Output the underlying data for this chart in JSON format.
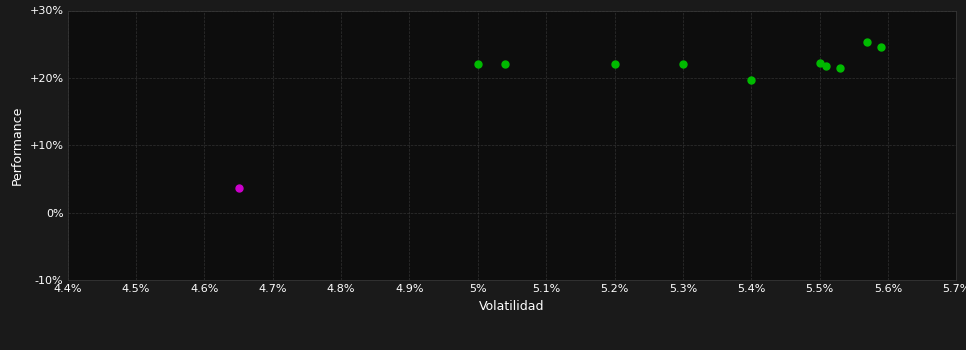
{
  "background_color": "#1a1a1a",
  "plot_bg_color": "#0d0d0d",
  "grid_color": "#3a3a3a",
  "text_color": "#ffffff",
  "xlabel": "Volatilidad",
  "ylabel": "Performance",
  "xlim": [
    0.044,
    0.057
  ],
  "ylim": [
    -0.1,
    0.3
  ],
  "green_points": [
    [
      0.05,
      0.221
    ],
    [
      0.0504,
      0.221
    ],
    [
      0.052,
      0.221
    ],
    [
      0.053,
      0.221
    ],
    [
      0.054,
      0.197
    ],
    [
      0.055,
      0.222
    ],
    [
      0.0551,
      0.218
    ],
    [
      0.0553,
      0.214
    ],
    [
      0.0557,
      0.253
    ],
    [
      0.0559,
      0.246
    ]
  ],
  "magenta_points": [
    [
      0.0465,
      0.036
    ]
  ],
  "point_size": 25,
  "green_color": "#00bb00",
  "magenta_color": "#cc00cc",
  "ytick_vals": [
    -0.1,
    0.0,
    0.1,
    0.2,
    0.3
  ],
  "ytick_labels": [
    "-10%",
    "0%",
    "+10%",
    "+20%",
    "+30%"
  ],
  "label_fontsize": 9,
  "tick_fontsize": 8
}
